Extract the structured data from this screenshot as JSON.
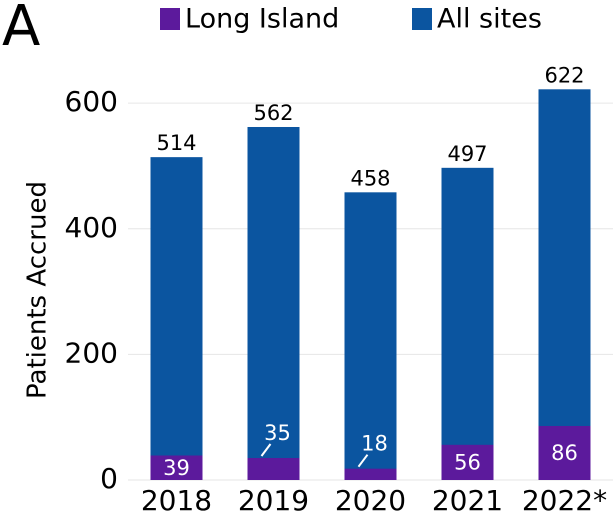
{
  "chart_data": {
    "type": "bar",
    "panel_label": "A",
    "y_label": "Patients Accrued",
    "categories": [
      "2018",
      "2019",
      "2020",
      "2021",
      "2022*"
    ],
    "series": [
      {
        "name": "Long Island",
        "color": "#5c1a9c",
        "values": [
          39,
          35,
          18,
          56,
          86
        ]
      },
      {
        "name": "All sites",
        "color": "#0b55a0",
        "values": [
          514,
          562,
          458,
          497,
          622
        ]
      }
    ],
    "ylim": [
      0,
      640
    ],
    "yticks": [
      0,
      200,
      400,
      600
    ],
    "grid": true,
    "legend": "top"
  }
}
